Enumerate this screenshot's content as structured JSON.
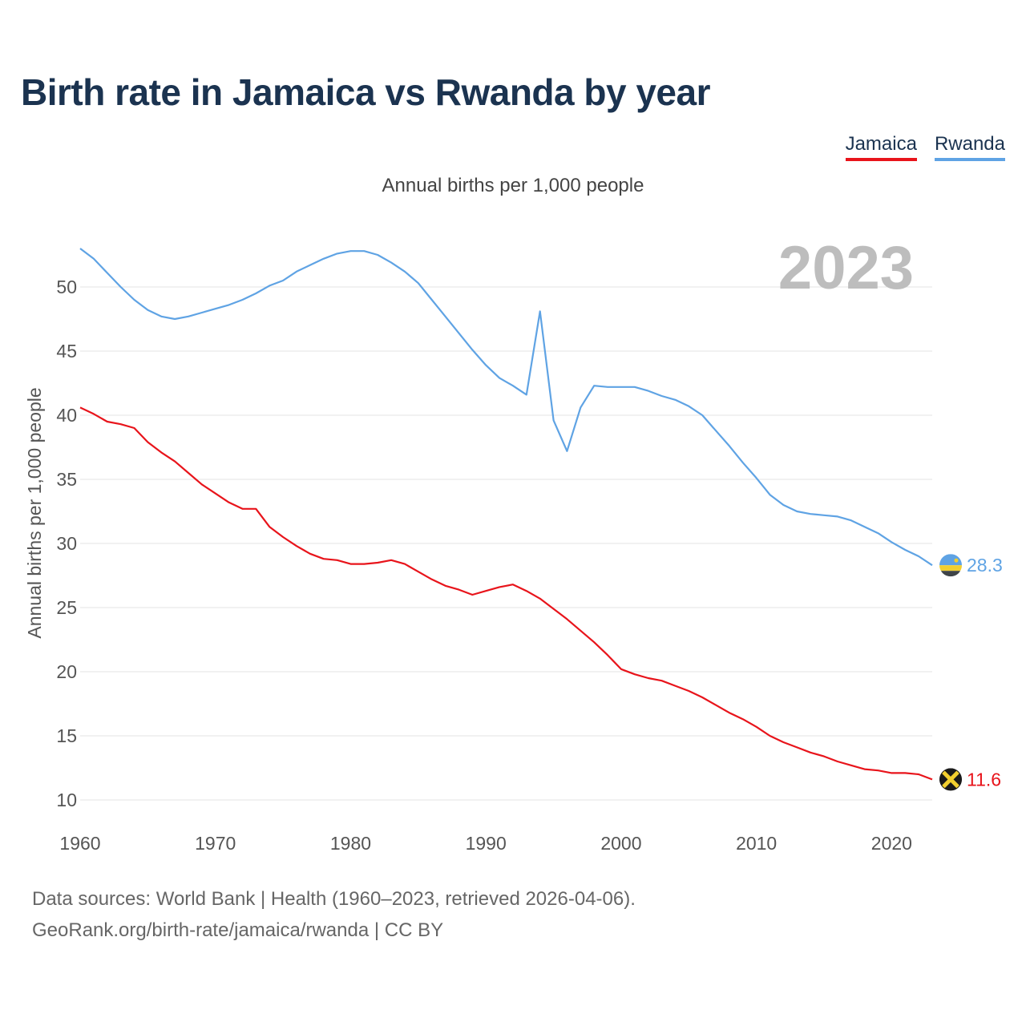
{
  "title": "Birth rate in Jamaica vs Rwanda by year",
  "subtitle": "Annual births per 1,000 people",
  "legend": [
    {
      "name": "Jamaica",
      "color": "#e8141b"
    },
    {
      "name": "Rwanda",
      "color": "#5fa3e4"
    }
  ],
  "year_watermark": "2023",
  "footer": {
    "line1": "Data sources: World Bank | Health (1960–2023, retrieved 2026-04-06).",
    "line2": "GeoRank.org/birth-rate/jamaica/rwanda | CC BY"
  },
  "chart_data": {
    "type": "line",
    "title": "Birth rate in Jamaica vs Rwanda by year",
    "xlabel": "",
    "ylabel": "Annual births per 1,000 people",
    "xlim": [
      1960,
      2023
    ],
    "ylim": [
      10,
      53
    ],
    "yticks": [
      10,
      15,
      20,
      25,
      30,
      35,
      40,
      45,
      50
    ],
    "xticks": [
      1960,
      1970,
      1980,
      1990,
      2000,
      2010,
      2020
    ],
    "grid": true,
    "legend_position": "top-right",
    "x": [
      1960,
      1961,
      1962,
      1963,
      1964,
      1965,
      1966,
      1967,
      1968,
      1969,
      1970,
      1971,
      1972,
      1973,
      1974,
      1975,
      1976,
      1977,
      1978,
      1979,
      1980,
      1981,
      1982,
      1983,
      1984,
      1985,
      1986,
      1987,
      1988,
      1989,
      1990,
      1991,
      1992,
      1993,
      1994,
      1995,
      1996,
      1997,
      1998,
      1999,
      2000,
      2001,
      2002,
      2003,
      2004,
      2005,
      2006,
      2007,
      2008,
      2009,
      2010,
      2011,
      2012,
      2013,
      2014,
      2015,
      2016,
      2017,
      2018,
      2019,
      2020,
      2021,
      2022,
      2023
    ],
    "series": [
      {
        "name": "Jamaica",
        "color": "#e8141b",
        "end_label": "11.6",
        "values": [
          40.6,
          40.1,
          39.5,
          39.3,
          39.0,
          37.9,
          37.1,
          36.4,
          35.5,
          34.6,
          33.9,
          33.2,
          32.7,
          32.7,
          31.3,
          30.5,
          29.8,
          29.2,
          28.8,
          28.7,
          28.4,
          28.4,
          28.5,
          28.7,
          28.4,
          27.8,
          27.2,
          26.7,
          26.4,
          26.0,
          26.3,
          26.6,
          26.8,
          26.3,
          25.7,
          24.9,
          24.1,
          23.2,
          22.3,
          21.3,
          20.2,
          19.8,
          19.5,
          19.3,
          18.9,
          18.5,
          18.0,
          17.4,
          16.8,
          16.3,
          15.7,
          15.0,
          14.5,
          14.1,
          13.7,
          13.4,
          13.0,
          12.7,
          12.4,
          12.3,
          12.1,
          12.1,
          12.0,
          11.6
        ]
      },
      {
        "name": "Rwanda",
        "color": "#5fa3e4",
        "end_label": "28.3",
        "values": [
          53.0,
          52.2,
          51.1,
          50.0,
          49.0,
          48.2,
          47.7,
          47.5,
          47.7,
          48.0,
          48.3,
          48.6,
          49.0,
          49.5,
          50.1,
          50.5,
          51.2,
          51.7,
          52.2,
          52.6,
          52.8,
          52.8,
          52.5,
          51.9,
          51.2,
          50.3,
          49.0,
          47.7,
          46.4,
          45.1,
          43.9,
          42.9,
          42.3,
          41.6,
          48.1,
          39.6,
          37.2,
          40.6,
          42.3,
          42.2,
          42.2,
          42.2,
          41.9,
          41.5,
          41.2,
          40.7,
          40.0,
          38.8,
          37.6,
          36.3,
          35.1,
          33.8,
          33.0,
          32.5,
          32.3,
          32.2,
          32.1,
          31.8,
          31.3,
          30.8,
          30.1,
          29.5,
          29.0,
          28.3
        ]
      }
    ]
  }
}
